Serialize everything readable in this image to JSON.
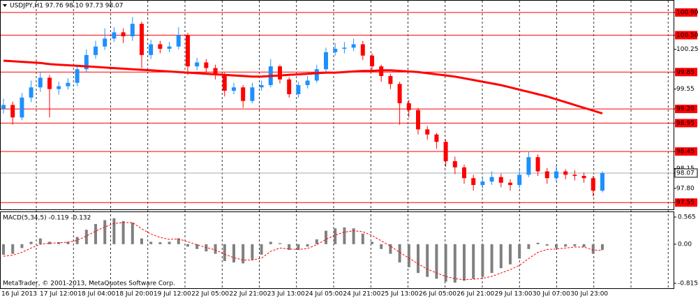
{
  "chart_data": [
    {
      "type": "candlestick",
      "title": "USDJPY,H1  97.76 98.10 97.73 98.07",
      "ohlc": [
        [
          99.2,
          99.38,
          99.12,
          99.27
        ],
        [
          99.27,
          99.33,
          98.92,
          99.05
        ],
        [
          99.05,
          99.48,
          99.0,
          99.4
        ],
        [
          99.4,
          99.7,
          99.32,
          99.58
        ],
        [
          99.58,
          99.85,
          99.5,
          99.75
        ],
        [
          99.75,
          99.8,
          99.05,
          99.55
        ],
        [
          99.55,
          99.68,
          99.45,
          99.6
        ],
        [
          99.6,
          99.74,
          99.54,
          99.66
        ],
        [
          99.66,
          99.98,
          99.6,
          99.9
        ],
        [
          99.9,
          100.25,
          99.85,
          100.15
        ],
        [
          100.15,
          100.4,
          100.08,
          100.3
        ],
        [
          100.3,
          100.62,
          100.24,
          100.44
        ],
        [
          100.44,
          100.64,
          100.38,
          100.55
        ],
        [
          100.55,
          100.62,
          100.36,
          100.48
        ],
        [
          100.48,
          100.82,
          100.4,
          100.7
        ],
        [
          100.7,
          100.74,
          99.92,
          100.15
        ],
        [
          100.15,
          100.42,
          100.08,
          100.34
        ],
        [
          100.34,
          100.4,
          100.18,
          100.26
        ],
        [
          100.26,
          100.38,
          100.2,
          100.3
        ],
        [
          100.3,
          100.64,
          100.25,
          100.5
        ],
        [
          100.5,
          100.54,
          99.8,
          99.95
        ],
        [
          99.95,
          100.1,
          99.88,
          100.02
        ],
        [
          100.02,
          100.08,
          99.84,
          99.92
        ],
        [
          99.92,
          99.98,
          99.72,
          99.8
        ],
        [
          99.8,
          99.84,
          99.42,
          99.52
        ],
        [
          99.52,
          99.66,
          99.46,
          99.58
        ],
        [
          99.58,
          99.62,
          99.22,
          99.34
        ],
        [
          99.34,
          99.66,
          99.3,
          99.58
        ],
        [
          99.58,
          99.7,
          99.52,
          99.62
        ],
        [
          99.62,
          100.08,
          99.58,
          99.95
        ],
        [
          99.95,
          99.98,
          99.65,
          99.72
        ],
        [
          99.72,
          99.76,
          99.4,
          99.46
        ],
        [
          99.46,
          99.68,
          99.4,
          99.62
        ],
        [
          99.62,
          99.78,
          99.56,
          99.7
        ],
        [
          99.7,
          99.98,
          99.66,
          99.9
        ],
        [
          99.9,
          100.28,
          99.86,
          100.2
        ],
        [
          100.2,
          100.36,
          100.14,
          100.26
        ],
        [
          100.26,
          100.38,
          100.18,
          100.28
        ],
        [
          100.28,
          100.44,
          100.22,
          100.34
        ],
        [
          100.34,
          100.4,
          100.06,
          100.14
        ],
        [
          100.14,
          100.18,
          99.86,
          99.95
        ],
        [
          99.95,
          99.98,
          99.68,
          99.78
        ],
        [
          99.78,
          99.82,
          99.55,
          99.64
        ],
        [
          99.64,
          99.68,
          98.92,
          99.3
        ],
        [
          99.3,
          99.36,
          99.05,
          99.18
        ],
        [
          99.18,
          99.22,
          98.75,
          98.84
        ],
        [
          98.84,
          98.9,
          98.66,
          98.75
        ],
        [
          98.75,
          98.78,
          98.5,
          98.62
        ],
        [
          98.62,
          98.66,
          98.18,
          98.28
        ],
        [
          98.28,
          98.36,
          98.05,
          98.17
        ],
        [
          98.17,
          98.22,
          97.88,
          97.98
        ],
        [
          97.98,
          98.04,
          97.76,
          97.86
        ],
        [
          97.86,
          98.0,
          97.8,
          97.92
        ],
        [
          97.92,
          98.1,
          97.86,
          98.0
        ],
        [
          98.0,
          98.06,
          97.82,
          97.9
        ],
        [
          97.9,
          97.96,
          97.76,
          97.86
        ],
        [
          97.86,
          98.12,
          97.8,
          98.04
        ],
        [
          98.04,
          98.45,
          98.0,
          98.35
        ],
        [
          98.35,
          98.4,
          98.02,
          98.1
        ],
        [
          98.1,
          98.16,
          97.88,
          97.98
        ],
        [
          97.98,
          98.2,
          97.92,
          98.1
        ],
        [
          98.1,
          98.14,
          97.96,
          98.04
        ],
        [
          98.04,
          98.12,
          97.94,
          98.02
        ],
        [
          98.02,
          98.08,
          97.9,
          97.98
        ],
        [
          97.98,
          98.02,
          97.66,
          97.76
        ],
        [
          97.76,
          98.1,
          97.73,
          98.07
        ]
      ],
      "up_color": "#1e90ff",
      "down_color": "#ff0000",
      "ma": {
        "color": "#ff0000",
        "values": [
          100.05,
          100.04,
          100.03,
          100.02,
          100.01,
          99.99,
          99.98,
          99.97,
          99.96,
          99.95,
          99.94,
          99.93,
          99.92,
          99.91,
          99.9,
          99.89,
          99.88,
          99.87,
          99.86,
          99.85,
          99.84,
          99.83,
          99.82,
          99.81,
          99.8,
          99.79,
          99.78,
          99.77,
          99.77,
          99.78,
          99.79,
          99.8,
          99.81,
          99.82,
          99.83,
          99.84,
          99.84,
          99.85,
          99.86,
          99.87,
          99.87,
          99.88,
          99.88,
          99.87,
          99.86,
          99.85,
          99.83,
          99.81,
          99.79,
          99.77,
          99.74,
          99.71,
          99.68,
          99.65,
          99.62,
          99.58,
          99.54,
          99.5,
          99.46,
          99.42,
          99.37,
          99.32,
          99.27,
          99.22,
          99.17,
          99.12
        ]
      },
      "levels": [
        100.9,
        100.5,
        99.85,
        99.2,
        98.95,
        98.45,
        97.55
      ],
      "level_color": "#ff0000",
      "last_price": 98.07,
      "ylim": [
        97.43,
        101.12
      ],
      "yticks": [
        {
          "value": 100.9,
          "label": "100.90"
        },
        {
          "value": 100.5,
          "label": "100.50"
        },
        100.25,
        99.85,
        99.55,
        {
          "value": 99.2,
          "label": "99.20"
        },
        98.95,
        98.45,
        98.15,
        98.07,
        {
          "value": 97.8,
          "label": "97.80"
        },
        97.55
      ],
      "grid": true
    },
    {
      "type": "macd",
      "title": "MACD(5,34,5) -0.119 -0.132",
      "histogram": {
        "color": "#808080",
        "values": [
          -0.22,
          -0.2,
          -0.08,
          0.05,
          0.12,
          0.05,
          0.04,
          0.05,
          0.15,
          0.3,
          0.42,
          0.5,
          0.54,
          0.48,
          0.45,
          0.12,
          0.05,
          0.04,
          0.05,
          0.12,
          -0.05,
          -0.1,
          -0.15,
          -0.2,
          -0.35,
          -0.38,
          -0.4,
          -0.32,
          -0.22,
          0.05,
          0.02,
          -0.12,
          -0.12,
          -0.05,
          0.1,
          0.28,
          0.33,
          0.35,
          0.33,
          0.22,
          0.05,
          -0.1,
          -0.2,
          -0.38,
          -0.48,
          -0.6,
          -0.68,
          -0.72,
          -0.78,
          -0.8,
          -0.76,
          -0.72,
          -0.68,
          -0.6,
          -0.5,
          -0.42,
          -0.3,
          -0.1,
          0.03,
          -0.03,
          -0.08,
          -0.05,
          -0.04,
          -0.06,
          -0.2,
          -0.119
        ]
      },
      "signal": {
        "color": "#ff0000",
        "values": [
          -0.25,
          -0.23,
          -0.17,
          -0.08,
          0.0,
          0.02,
          0.03,
          0.04,
          0.08,
          0.17,
          0.27,
          0.36,
          0.43,
          0.45,
          0.45,
          0.32,
          0.21,
          0.14,
          0.1,
          0.11,
          0.05,
          -0.01,
          -0.07,
          -0.12,
          -0.21,
          -0.28,
          -0.33,
          -0.33,
          -0.29,
          -0.15,
          -0.08,
          -0.1,
          -0.11,
          -0.09,
          -0.01,
          0.1,
          0.19,
          0.25,
          0.28,
          0.26,
          0.18,
          0.07,
          -0.04,
          -0.17,
          -0.29,
          -0.41,
          -0.52,
          -0.6,
          -0.67,
          -0.72,
          -0.74,
          -0.73,
          -0.71,
          -0.67,
          -0.6,
          -0.53,
          -0.44,
          -0.3,
          -0.17,
          -0.11,
          -0.1,
          -0.08,
          -0.06,
          -0.06,
          -0.12,
          -0.132
        ]
      },
      "ylim": [
        -0.917,
        0.681
      ],
      "yticks": [
        0.565,
        {
          "value": 0,
          "label": "0.00"
        },
        -0.815
      ],
      "x_labels": [
        "16 Jul 2013",
        "17 Jul 12:00",
        "18 Jul 04:00",
        "18 Jul 20:00",
        "19 Jul 12:00",
        "22 Jul 05:00",
        "22 Jul 21:00",
        "23 Jul 13:00",
        "24 Jul 05:00",
        "24 Jul 21:00",
        "25 Jul 13:00",
        "26 Jul 05:00",
        "26 Jul 21:00",
        "29 Jul 13:00",
        "30 Jul 07:00",
        "30 Jul 23:00"
      ],
      "copyright": "MetaTrader, © 2001-2013, MetaQuotes Software Corp."
    }
  ]
}
